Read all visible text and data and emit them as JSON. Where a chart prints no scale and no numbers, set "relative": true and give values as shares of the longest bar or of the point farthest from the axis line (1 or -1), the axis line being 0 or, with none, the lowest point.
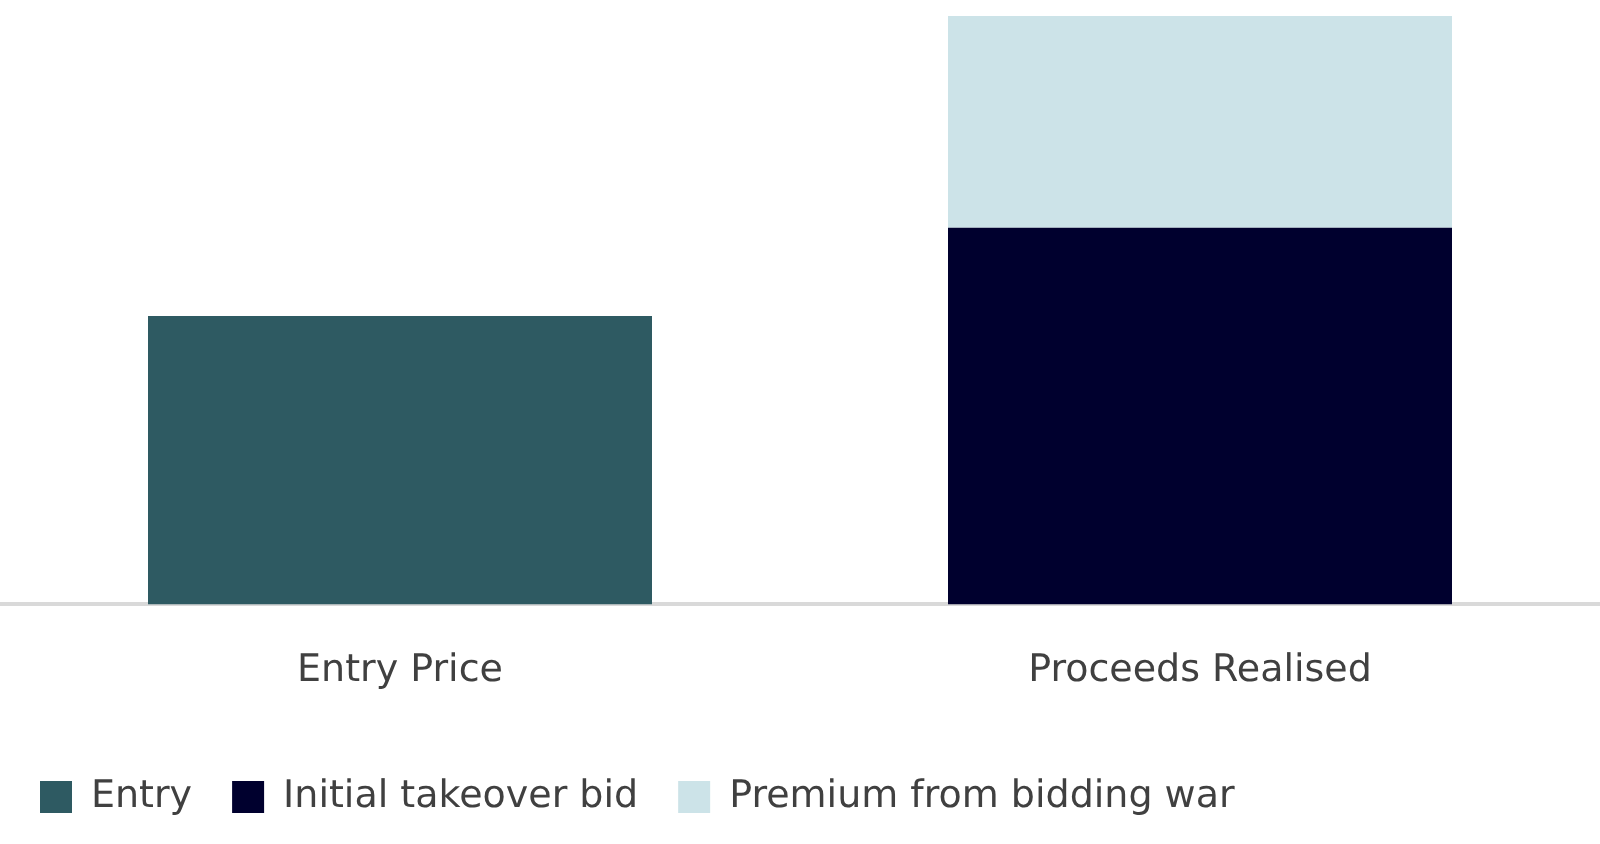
{
  "chart_data": {
    "type": "bar",
    "relative": true,
    "stacked": true,
    "categories": [
      "Entry Price",
      "Proceeds Realised"
    ],
    "series": [
      {
        "name": "Entry",
        "color": "#2e5a62",
        "values": [
          0.49,
          null
        ]
      },
      {
        "name": "Initial takeover bid",
        "color": "#00002e",
        "values": [
          null,
          0.64
        ]
      },
      {
        "name": "Premium from bidding war",
        "color": "#cce3e8",
        "values": [
          null,
          0.36
        ]
      }
    ],
    "legend": "bottom",
    "grid": false
  }
}
